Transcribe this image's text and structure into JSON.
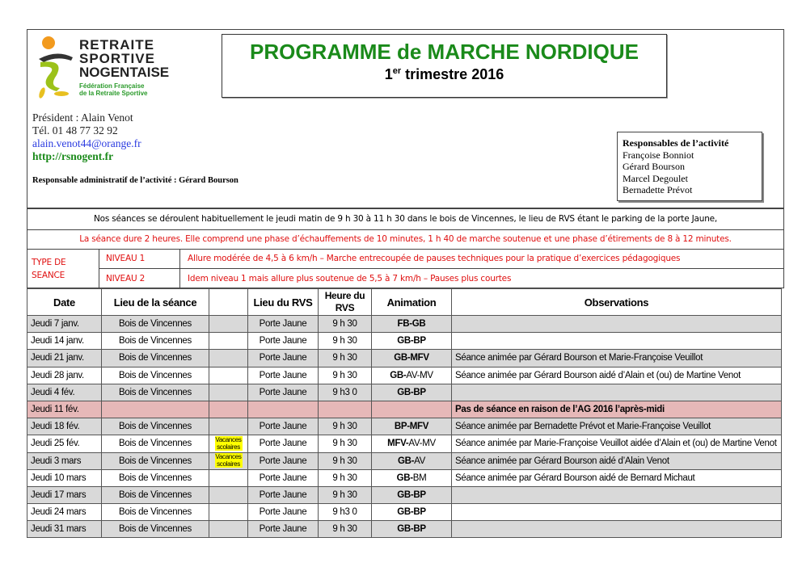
{
  "logo": {
    "line1": "RETRAITE",
    "line2": "SPORTIVE",
    "line3": "NOGENTAISE",
    "line4": "Fédération Française",
    "line5": "de la Retraite Sportive"
  },
  "title": "PROGRAMME de MARCHE NORDIQUE",
  "subtitle": {
    "num": "1",
    "sup": "er",
    "text": " trimestre 2016"
  },
  "contact": {
    "president": "Président  : Alain Venot",
    "tel": "Tél. 01 48 77 32 92",
    "email": "alain.venot44@orange.fr",
    "web": "http://rsnogent.fr"
  },
  "admin": "Responsable administratif de l’activité : Gérard Bourson",
  "responsables": {
    "title": "Responsables de l’activité",
    "names": [
      "Françoise Bonniot",
      "Gérard Bourson",
      "Marcel Degoulet",
      "Bernadette Prévot"
    ]
  },
  "notice": "Nos séances se déroulent habituellement le jeudi matin de 9 h 30 à 11 h 30 dans le bois de Vincennes, le lieu de RVS étant le parking de la porte Jaune,",
  "notice2": "La séance dure 2 heures. Elle comprend une phase d’échauffements de 10 minutes, 1 h 40 de marche soutenue et une phase d’étirements de 8 à 12 minutes.",
  "types": {
    "label": "TYPE DE SEANCE",
    "levels": [
      {
        "name": "NIVEAU 1",
        "desc": "Allure modérée de 4,5 à 6 km/h – Marche entrecoupée de pauses techniques pour la pratique d’exercices pédagogiques"
      },
      {
        "name": "NIVEAU 2",
        "desc": "Idem niveau 1 mais allure plus soutenue de 5,5 à 7 km/h – Pauses plus courtes"
      }
    ]
  },
  "table": {
    "headers": [
      "Date",
      "Lieu de la séance",
      "",
      "Lieu du RVS",
      "Heure du RVS",
      "Animation",
      "Observations"
    ],
    "rows": [
      {
        "date": "Jeudi 7 janv.",
        "lieu": "Bois de Vincennes",
        "vac": "",
        "rvs": "Porte Jaune",
        "heure": "9 h 30",
        "anim": [
          [
            "FB-GB",
            true
          ]
        ],
        "obs": "",
        "style": "g"
      },
      {
        "date": "Jeudi 14 janv.",
        "lieu": "Bois de Vincennes",
        "vac": "",
        "rvs": "Porte Jaune",
        "heure": "9 h 30",
        "anim": [
          [
            "GB-BP",
            true
          ]
        ],
        "obs": "",
        "style": ""
      },
      {
        "date": "Jeudi 21 janv.",
        "lieu": "Bois de Vincennes",
        "vac": "",
        "rvs": "Porte Jaune",
        "heure": "9 h 30",
        "anim": [
          [
            "GB-MFV",
            true
          ]
        ],
        "obs": "Séance animée par Gérard Bourson et Marie-Françoise Veuillot",
        "style": "g"
      },
      {
        "date": "Jeudi 28 janv.",
        "lieu": "Bois de Vincennes",
        "vac": "",
        "rvs": "Porte Jaune",
        "heure": "9 h 30",
        "anim": [
          [
            "GB-",
            true
          ],
          [
            "AV-MV",
            false
          ]
        ],
        "obs": "Séance animée par Gérard Bourson aidé d’Alain et (ou) de Martine Venot",
        "style": ""
      },
      {
        "date": "Jeudi 4 fév.",
        "lieu": "Bois de Vincennes",
        "vac": "",
        "rvs": "Porte Jaune",
        "heure": "9 h3 0",
        "anim": [
          [
            "GB-BP",
            true
          ]
        ],
        "obs": "",
        "style": "g"
      },
      {
        "date": "Jeudi 11 fév.",
        "lieu": "",
        "vac": "",
        "rvs": "",
        "heure": "",
        "anim": [],
        "obs": "Pas de séance en raison de l’AG 2016 l’après-midi",
        "obsBold": true,
        "style": "p"
      },
      {
        "date": "Jeudi 18 fév.",
        "lieu": "Bois de Vincennes",
        "vac": "",
        "rvs": "Porte Jaune",
        "heure": "9 h 30",
        "anim": [
          [
            "BP-MFV",
            true
          ]
        ],
        "obs": "Séance animée par Bernadette Prévot et Marie-Françoise Veuillot",
        "style": "g"
      },
      {
        "date": "Jeudi 25 fév.",
        "lieu": "Bois de Vincennes",
        "vac": "Vacances scolaires",
        "rvs": "Porte Jaune",
        "heure": "9 h 30",
        "anim": [
          [
            "MFV-",
            true
          ],
          [
            "AV-MV",
            false
          ]
        ],
        "obs": "Séance animée par Marie-Françoise Veuillot aidée d’Alain et (ou) de Martine Venot",
        "style": ""
      },
      {
        "date": "Jeudi 3 mars",
        "lieu": "Bois de Vincennes",
        "vac": "Vacances scolaires",
        "rvs": "Porte Jaune",
        "heure": "9 h 30",
        "anim": [
          [
            "GB-",
            true
          ],
          [
            "AV",
            false
          ]
        ],
        "obs": "Séance animée par Gérard Bourson aidé d’Alain Venot",
        "style": "g"
      },
      {
        "date": "Jeudi 10 mars",
        "lieu": "Bois de Vincennes",
        "vac": "",
        "rvs": "Porte Jaune",
        "heure": "9 h 30",
        "anim": [
          [
            "GB-",
            true
          ],
          [
            "BM",
            false
          ]
        ],
        "obs": "Séance animée par Gérard Bourson aidé de Bernard Michaut",
        "style": ""
      },
      {
        "date": "Jeudi 17 mars",
        "lieu": "Bois de Vincennes",
        "vac": "",
        "rvs": "Porte Jaune",
        "heure": "9 h 30",
        "anim": [
          [
            "GB-BP",
            true
          ]
        ],
        "obs": "",
        "style": "g"
      },
      {
        "date": "Jeudi 24 mars",
        "lieu": "Bois de Vincennes",
        "vac": "",
        "rvs": "Porte Jaune",
        "heure": "9 h3 0",
        "anim": [
          [
            "GB-BP",
            true
          ]
        ],
        "obs": "",
        "style": ""
      },
      {
        "date": "Jeudi 31 mars",
        "lieu": "Bois de Vincennes",
        "vac": "",
        "rvs": "Porte Jaune",
        "heure": "9 h 30",
        "anim": [
          [
            "GB-BP",
            true
          ]
        ],
        "obs": "",
        "style": "g"
      }
    ]
  }
}
